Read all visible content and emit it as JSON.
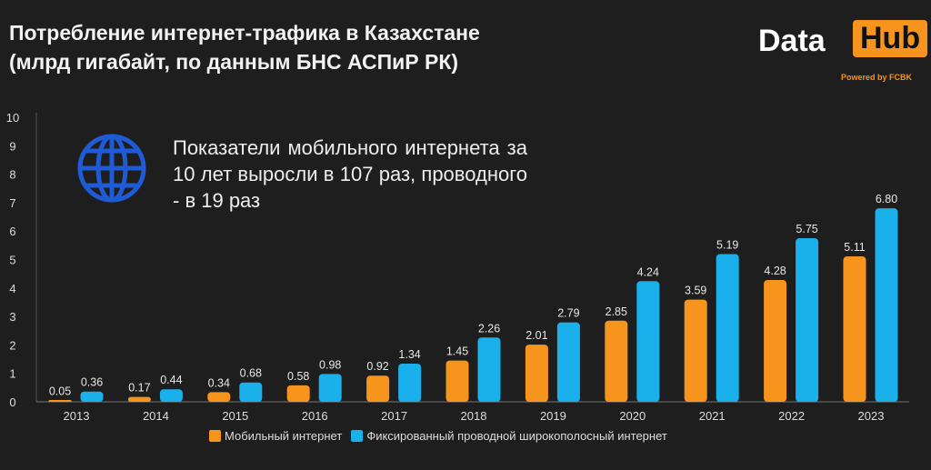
{
  "title_line1": "Потребление интернет-трафика в Казахстане",
  "title_line2": "(млрд гигабайт, по данным БНС АСПиР РК)",
  "logo": {
    "data": "Data",
    "hub": "Hub",
    "powered": "Powered by FCBK"
  },
  "note": "Показатели мобильного интернета за 10 лет выросли в 107 раз, проводного - в 19 раз",
  "colors": {
    "mobile": "#f7941d",
    "fixed": "#1ab0ec",
    "globe": "#1f5bd6"
  },
  "chart_data": {
    "type": "bar",
    "categories": [
      "2013",
      "2014",
      "2015",
      "2016",
      "2017",
      "2018",
      "2019",
      "2020",
      "2021",
      "2022",
      "2023"
    ],
    "series": [
      {
        "name": "Мобильный интернет",
        "values": [
          0.05,
          0.17,
          0.34,
          0.58,
          0.92,
          1.45,
          2.01,
          2.85,
          3.59,
          4.28,
          5.11
        ]
      },
      {
        "name": "Фиксированный проводной широкополосный интернет",
        "values": [
          0.36,
          0.44,
          0.68,
          0.98,
          1.34,
          2.26,
          2.79,
          4.24,
          5.19,
          5.75,
          6.8
        ]
      }
    ],
    "ylim": [
      0,
      10
    ],
    "yticks": [
      0,
      1,
      2,
      3,
      4,
      5,
      6,
      7,
      8,
      9,
      10
    ],
    "legend": "bottom"
  }
}
